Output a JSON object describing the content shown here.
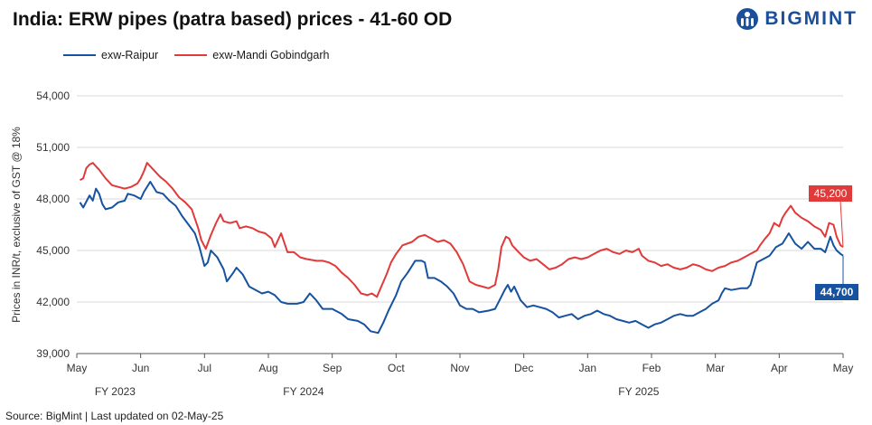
{
  "title": "India: ERW pipes (patra based) prices - 41-60 OD",
  "logo": {
    "text": "BIGMINT",
    "icon": "bigmint-logo-icon"
  },
  "source": "Source: BigMint  | Last updated on 02-May-25",
  "colors": {
    "raipur": "#1652a0",
    "mandi": "#e03a3a",
    "axis": "#999999"
  },
  "chart_data": {
    "type": "line",
    "title": "India: ERW pipes (patra based) prices - 41-60 OD",
    "ylabel": "Prices in INR/t, exclusive of GST @ 18%",
    "xlabel": "",
    "ylim": [
      39000,
      54000
    ],
    "yticks": [
      39000,
      42000,
      45000,
      48000,
      51000,
      54000
    ],
    "ytick_labels": [
      "39,000",
      "42,000",
      "45,000",
      "48,000",
      "51,000",
      "54,000"
    ],
    "xlim": [
      0,
      12
    ],
    "xticks": [
      0,
      1,
      2,
      3,
      4,
      5,
      6,
      7,
      8,
      9,
      10,
      11,
      12
    ],
    "xtick_labels": [
      "May",
      "Jun",
      "Jul",
      "Aug",
      "Sep",
      "Oct",
      "Nov",
      "Dec",
      "Jan",
      "Feb",
      "Mar",
      "Apr",
      "May"
    ],
    "fiscal_labels": [
      {
        "x": 0.6,
        "label": "FY 2023"
      },
      {
        "x": 3.55,
        "label": "FY 2024"
      },
      {
        "x": 8.8,
        "label": "FY 2025"
      }
    ],
    "grid": true,
    "legend": "top-left",
    "series": [
      {
        "name": "exw-Raipur",
        "color": "#1652a0",
        "end_label": "44,700",
        "points": [
          [
            0.05,
            47.8
          ],
          [
            0.1,
            47.5
          ],
          [
            0.2,
            48.2
          ],
          [
            0.25,
            47.9
          ],
          [
            0.3,
            48.6
          ],
          [
            0.35,
            48.3
          ],
          [
            0.4,
            47.7
          ],
          [
            0.45,
            47.4
          ],
          [
            0.55,
            47.5
          ],
          [
            0.65,
            47.8
          ],
          [
            0.75,
            47.9
          ],
          [
            0.8,
            48.3
          ],
          [
            0.9,
            48.2
          ],
          [
            1.0,
            48.0
          ],
          [
            1.05,
            48.4
          ],
          [
            1.15,
            49.0
          ],
          [
            1.25,
            48.4
          ],
          [
            1.35,
            48.3
          ],
          [
            1.45,
            47.9
          ],
          [
            1.55,
            47.6
          ],
          [
            1.65,
            47.0
          ],
          [
            1.75,
            46.5
          ],
          [
            1.85,
            46.0
          ],
          [
            1.92,
            45.2
          ],
          [
            2.0,
            44.1
          ],
          [
            2.05,
            44.3
          ],
          [
            2.1,
            45.0
          ],
          [
            2.2,
            44.6
          ],
          [
            2.3,
            43.9
          ],
          [
            2.35,
            43.2
          ],
          [
            2.45,
            43.7
          ],
          [
            2.5,
            44.0
          ],
          [
            2.6,
            43.6
          ],
          [
            2.7,
            42.9
          ],
          [
            2.8,
            42.7
          ],
          [
            2.9,
            42.5
          ],
          [
            3.0,
            42.6
          ],
          [
            3.1,
            42.4
          ],
          [
            3.2,
            42.0
          ],
          [
            3.3,
            41.9
          ],
          [
            3.45,
            41.9
          ],
          [
            3.55,
            42.0
          ],
          [
            3.65,
            42.5
          ],
          [
            3.75,
            42.1
          ],
          [
            3.85,
            41.6
          ],
          [
            4.0,
            41.6
          ],
          [
            4.15,
            41.3
          ],
          [
            4.25,
            41.0
          ],
          [
            4.4,
            40.9
          ],
          [
            4.5,
            40.7
          ],
          [
            4.6,
            40.3
          ],
          [
            4.72,
            40.2
          ],
          [
            4.8,
            40.8
          ],
          [
            4.88,
            41.5
          ],
          [
            5.0,
            42.4
          ],
          [
            5.08,
            43.2
          ],
          [
            5.18,
            43.7
          ],
          [
            5.3,
            44.4
          ],
          [
            5.4,
            44.4
          ],
          [
            5.45,
            44.3
          ],
          [
            5.5,
            43.4
          ],
          [
            5.6,
            43.4
          ],
          [
            5.7,
            43.2
          ],
          [
            5.8,
            42.9
          ],
          [
            5.9,
            42.5
          ],
          [
            6.0,
            41.8
          ],
          [
            6.1,
            41.6
          ],
          [
            6.2,
            41.6
          ],
          [
            6.3,
            41.4
          ],
          [
            6.45,
            41.5
          ],
          [
            6.55,
            41.6
          ],
          [
            6.62,
            42.1
          ],
          [
            6.7,
            42.7
          ],
          [
            6.75,
            43.0
          ],
          [
            6.8,
            42.6
          ],
          [
            6.85,
            42.9
          ],
          [
            6.95,
            42.1
          ],
          [
            7.05,
            41.7
          ],
          [
            7.15,
            41.8
          ],
          [
            7.25,
            41.7
          ],
          [
            7.35,
            41.6
          ],
          [
            7.45,
            41.4
          ],
          [
            7.55,
            41.1
          ],
          [
            7.65,
            41.2
          ],
          [
            7.75,
            41.3
          ],
          [
            7.85,
            41.0
          ],
          [
            7.95,
            41.2
          ],
          [
            8.05,
            41.3
          ],
          [
            8.15,
            41.5
          ],
          [
            8.25,
            41.3
          ],
          [
            8.35,
            41.2
          ],
          [
            8.45,
            41.0
          ],
          [
            8.55,
            40.9
          ],
          [
            8.65,
            40.8
          ],
          [
            8.75,
            40.9
          ],
          [
            8.85,
            40.7
          ],
          [
            8.95,
            40.5
          ],
          [
            9.05,
            40.7
          ],
          [
            9.15,
            40.8
          ],
          [
            9.25,
            41.0
          ],
          [
            9.35,
            41.2
          ],
          [
            9.45,
            41.3
          ],
          [
            9.55,
            41.2
          ],
          [
            9.65,
            41.2
          ],
          [
            9.75,
            41.4
          ],
          [
            9.85,
            41.6
          ],
          [
            9.95,
            41.9
          ],
          [
            10.05,
            42.1
          ],
          [
            10.1,
            42.5
          ],
          [
            10.15,
            42.8
          ],
          [
            10.25,
            42.7
          ],
          [
            10.4,
            42.8
          ],
          [
            10.5,
            42.8
          ],
          [
            10.55,
            43.0
          ],
          [
            10.65,
            44.3
          ],
          [
            10.75,
            44.5
          ],
          [
            10.85,
            44.7
          ],
          [
            10.95,
            45.2
          ],
          [
            11.05,
            45.4
          ],
          [
            11.15,
            46.0
          ],
          [
            11.25,
            45.4
          ],
          [
            11.35,
            45.1
          ],
          [
            11.45,
            45.5
          ],
          [
            11.55,
            45.1
          ],
          [
            11.65,
            45.1
          ],
          [
            11.72,
            44.9
          ],
          [
            11.8,
            45.8
          ],
          [
            11.85,
            45.3
          ],
          [
            11.9,
            45.0
          ],
          [
            11.96,
            44.8
          ],
          [
            12.0,
            44.7
          ]
        ]
      },
      {
        "name": "exw-Mandi Gobindgarh",
        "color": "#e03a3a",
        "end_label": "45,200",
        "points": [
          [
            0.05,
            49.1
          ],
          [
            0.1,
            49.2
          ],
          [
            0.15,
            49.8
          ],
          [
            0.2,
            50.0
          ],
          [
            0.25,
            50.1
          ],
          [
            0.3,
            49.9
          ],
          [
            0.35,
            49.7
          ],
          [
            0.45,
            49.2
          ],
          [
            0.55,
            48.8
          ],
          [
            0.65,
            48.7
          ],
          [
            0.75,
            48.6
          ],
          [
            0.85,
            48.7
          ],
          [
            0.95,
            48.9
          ],
          [
            1.0,
            49.2
          ],
          [
            1.05,
            49.6
          ],
          [
            1.1,
            50.1
          ],
          [
            1.2,
            49.7
          ],
          [
            1.3,
            49.3
          ],
          [
            1.4,
            49.0
          ],
          [
            1.5,
            48.6
          ],
          [
            1.6,
            48.1
          ],
          [
            1.7,
            47.8
          ],
          [
            1.8,
            47.4
          ],
          [
            1.9,
            46.3
          ],
          [
            1.95,
            45.6
          ],
          [
            2.02,
            45.1
          ],
          [
            2.1,
            45.9
          ],
          [
            2.18,
            46.6
          ],
          [
            2.25,
            47.1
          ],
          [
            2.3,
            46.7
          ],
          [
            2.4,
            46.6
          ],
          [
            2.5,
            46.7
          ],
          [
            2.55,
            46.3
          ],
          [
            2.65,
            46.4
          ],
          [
            2.75,
            46.3
          ],
          [
            2.85,
            46.1
          ],
          [
            2.95,
            46.0
          ],
          [
            3.05,
            45.7
          ],
          [
            3.1,
            45.2
          ],
          [
            3.2,
            46.0
          ],
          [
            3.3,
            44.9
          ],
          [
            3.4,
            44.9
          ],
          [
            3.5,
            44.6
          ],
          [
            3.6,
            44.5
          ],
          [
            3.75,
            44.4
          ],
          [
            3.85,
            44.4
          ],
          [
            3.95,
            44.3
          ],
          [
            4.05,
            44.1
          ],
          [
            4.15,
            43.7
          ],
          [
            4.25,
            43.4
          ],
          [
            4.35,
            43.0
          ],
          [
            4.45,
            42.5
          ],
          [
            4.55,
            42.4
          ],
          [
            4.62,
            42.5
          ],
          [
            4.7,
            42.3
          ],
          [
            4.78,
            43.0
          ],
          [
            4.85,
            43.6
          ],
          [
            4.92,
            44.3
          ],
          [
            5.0,
            44.8
          ],
          [
            5.1,
            45.3
          ],
          [
            5.25,
            45.5
          ],
          [
            5.35,
            45.8
          ],
          [
            5.45,
            45.9
          ],
          [
            5.55,
            45.7
          ],
          [
            5.65,
            45.5
          ],
          [
            5.75,
            45.6
          ],
          [
            5.85,
            45.4
          ],
          [
            5.95,
            44.9
          ],
          [
            6.05,
            44.2
          ],
          [
            6.15,
            43.2
          ],
          [
            6.25,
            43.0
          ],
          [
            6.35,
            42.9
          ],
          [
            6.45,
            42.8
          ],
          [
            6.55,
            43.0
          ],
          [
            6.6,
            43.9
          ],
          [
            6.65,
            45.2
          ],
          [
            6.72,
            45.8
          ],
          [
            6.77,
            45.7
          ],
          [
            6.82,
            45.3
          ],
          [
            6.92,
            44.9
          ],
          [
            7.0,
            44.6
          ],
          [
            7.1,
            44.4
          ],
          [
            7.2,
            44.5
          ],
          [
            7.3,
            44.2
          ],
          [
            7.4,
            43.9
          ],
          [
            7.5,
            44.0
          ],
          [
            7.6,
            44.2
          ],
          [
            7.7,
            44.5
          ],
          [
            7.8,
            44.6
          ],
          [
            7.9,
            44.5
          ],
          [
            8.0,
            44.6
          ],
          [
            8.1,
            44.8
          ],
          [
            8.2,
            45.0
          ],
          [
            8.3,
            45.1
          ],
          [
            8.4,
            44.9
          ],
          [
            8.5,
            44.8
          ],
          [
            8.6,
            45.0
          ],
          [
            8.7,
            44.9
          ],
          [
            8.8,
            45.1
          ],
          [
            8.85,
            44.7
          ],
          [
            8.95,
            44.4
          ],
          [
            9.05,
            44.3
          ],
          [
            9.15,
            44.1
          ],
          [
            9.25,
            44.2
          ],
          [
            9.35,
            44.0
          ],
          [
            9.45,
            43.9
          ],
          [
            9.55,
            44.0
          ],
          [
            9.65,
            44.2
          ],
          [
            9.75,
            44.1
          ],
          [
            9.85,
            43.9
          ],
          [
            9.95,
            43.8
          ],
          [
            10.05,
            44.0
          ],
          [
            10.15,
            44.1
          ],
          [
            10.25,
            44.3
          ],
          [
            10.35,
            44.4
          ],
          [
            10.45,
            44.6
          ],
          [
            10.55,
            44.8
          ],
          [
            10.65,
            45.0
          ],
          [
            10.7,
            45.3
          ],
          [
            10.78,
            45.7
          ],
          [
            10.85,
            46.0
          ],
          [
            10.92,
            46.6
          ],
          [
            11.0,
            46.4
          ],
          [
            11.05,
            46.9
          ],
          [
            11.1,
            47.2
          ],
          [
            11.18,
            47.6
          ],
          [
            11.25,
            47.2
          ],
          [
            11.35,
            46.9
          ],
          [
            11.45,
            46.7
          ],
          [
            11.55,
            46.4
          ],
          [
            11.65,
            46.2
          ],
          [
            11.72,
            45.8
          ],
          [
            11.78,
            46.6
          ],
          [
            11.85,
            46.5
          ],
          [
            11.9,
            45.8
          ],
          [
            11.96,
            45.3
          ],
          [
            12.0,
            45.2
          ]
        ]
      }
    ]
  }
}
